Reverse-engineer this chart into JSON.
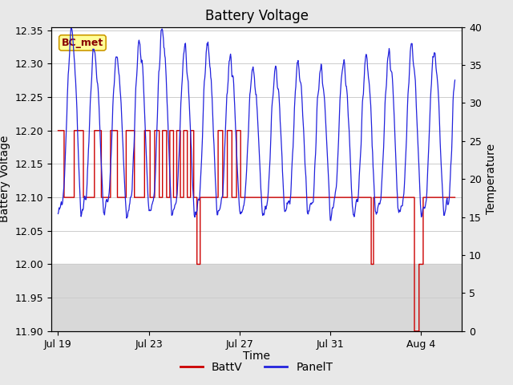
{
  "title": "Battery Voltage",
  "ylabel_left": "Battery Voltage",
  "ylabel_right": "Temperature",
  "xlabel": "Time",
  "ylim_left": [
    11.9,
    12.355
  ],
  "ylim_right": [
    0,
    40
  ],
  "yticks_left": [
    11.9,
    11.95,
    12.0,
    12.05,
    12.1,
    12.15,
    12.2,
    12.25,
    12.3,
    12.35
  ],
  "yticks_right": [
    0,
    5,
    10,
    15,
    20,
    25,
    30,
    35,
    40
  ],
  "xtick_labels": [
    "Jul 19",
    "Jul 23",
    "Jul 27",
    "Jul 31",
    "Aug 4"
  ],
  "xtick_positions": [
    0,
    4,
    8,
    12,
    16
  ],
  "xlim": [
    -0.3,
    17.8
  ],
  "station_label": "BC_met",
  "background_color": "#e8e8e8",
  "plot_bg_color": "#ffffff",
  "shaded_region_color": "#d8d8d8",
  "title_fontsize": 12,
  "axis_label_fontsize": 10,
  "tick_fontsize": 9,
  "battv_color": "#cc0000",
  "panelt_color": "#2222dd",
  "grid_color": "#cccccc",
  "station_label_facecolor": "#ffff99",
  "station_label_edgecolor": "#cc9900",
  "station_label_textcolor": "#880000",
  "legend_labels": [
    "BattV",
    "PanelT"
  ]
}
